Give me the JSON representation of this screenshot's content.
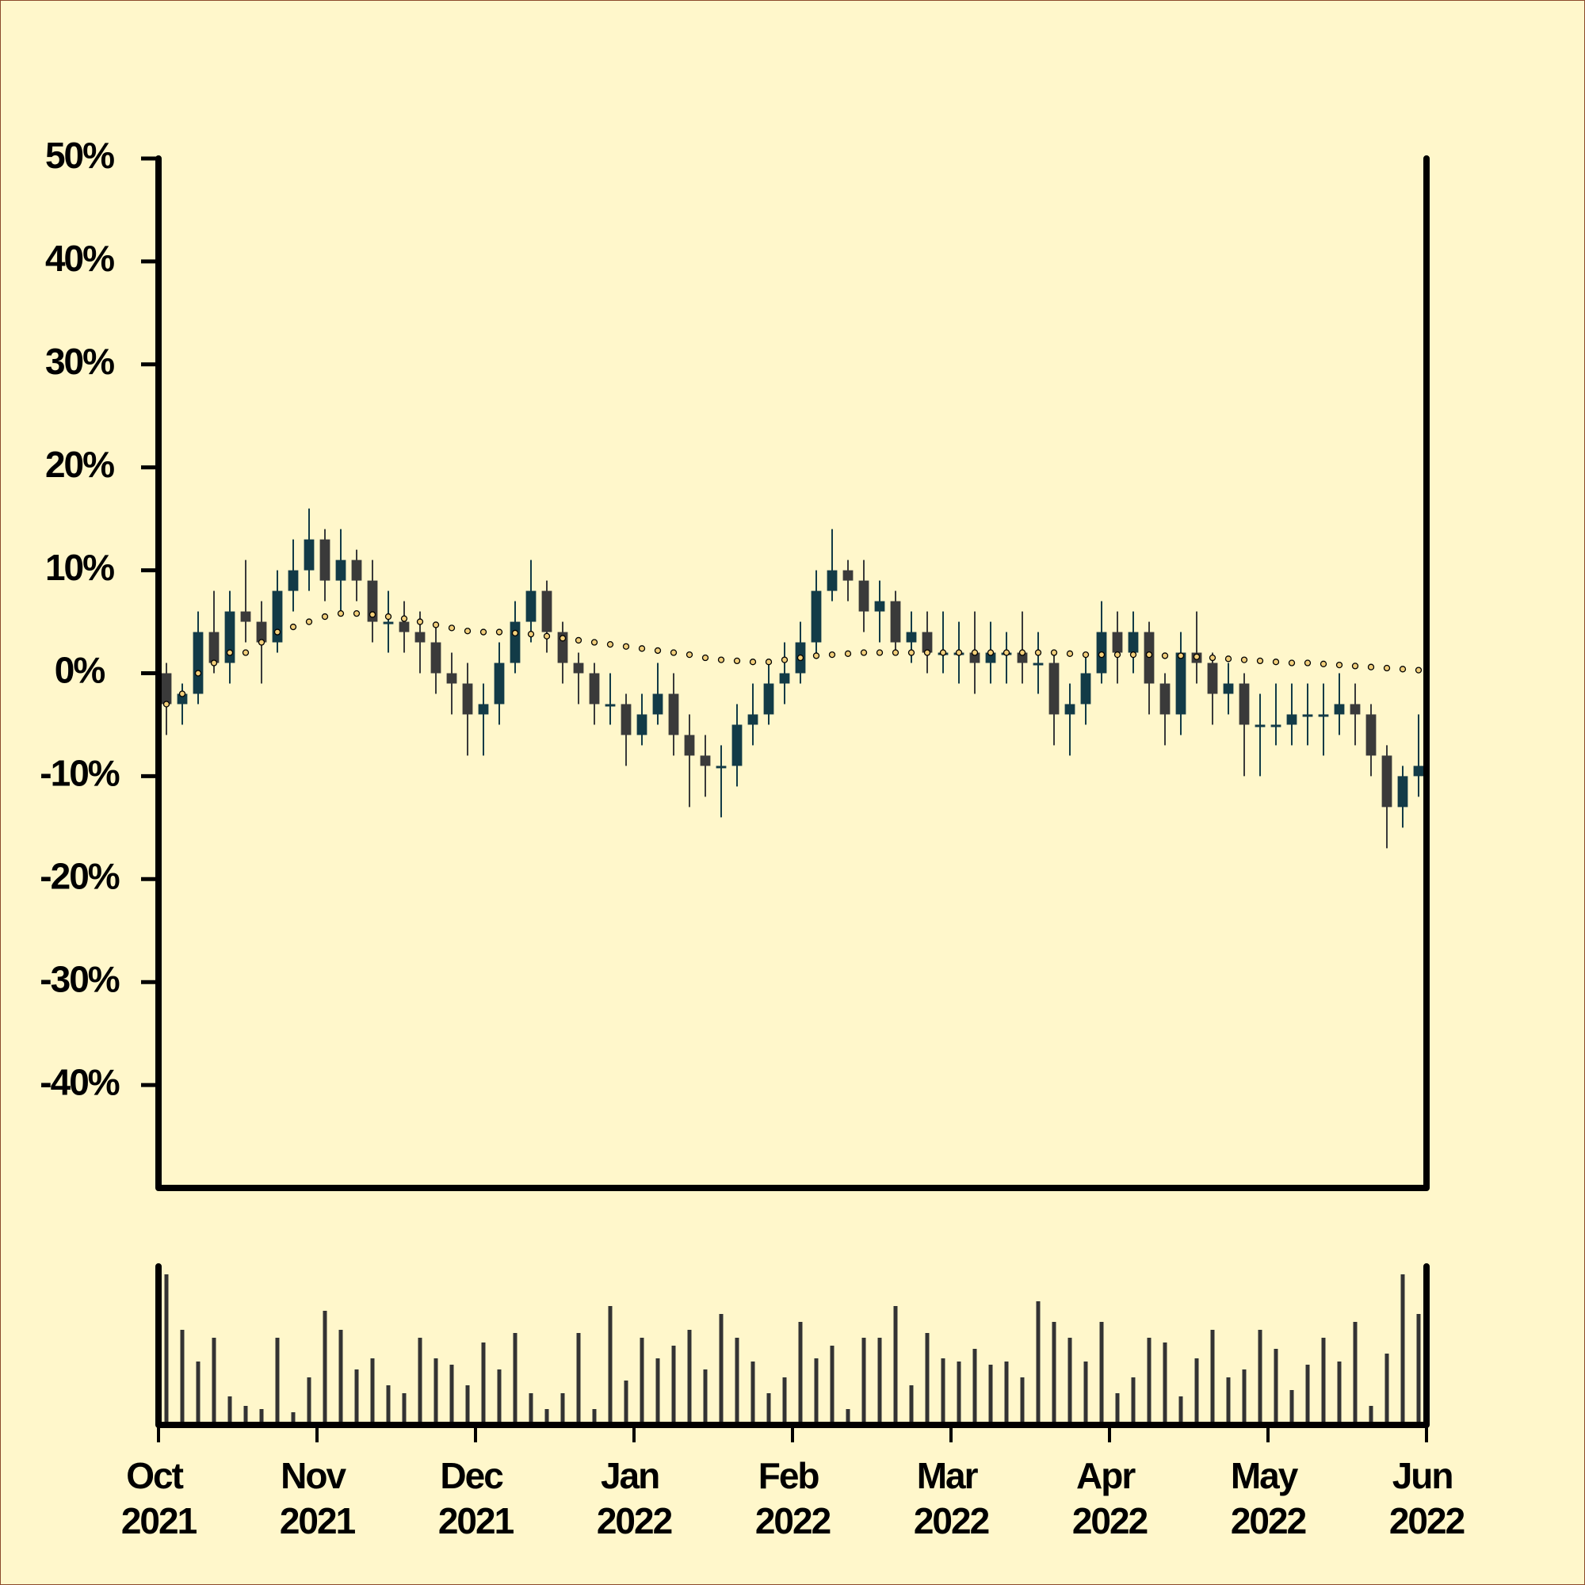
{
  "chart_data": {
    "type": "candlestick",
    "x": [
      0.05,
      0.15,
      0.25,
      0.35,
      0.45,
      0.55,
      0.65,
      0.75,
      0.85,
      0.95,
      1.05,
      1.15,
      1.25,
      1.35,
      1.45,
      1.55,
      1.65,
      1.75,
      1.85,
      1.95,
      2.05,
      2.15,
      2.25,
      2.35,
      2.45,
      2.55,
      2.65,
      2.75,
      2.85,
      2.95,
      3.05,
      3.15,
      3.25,
      3.35,
      3.45,
      3.55,
      3.65,
      3.75,
      3.85,
      3.95,
      4.05,
      4.15,
      4.25,
      4.35,
      4.45,
      4.55,
      4.65,
      4.75,
      4.85,
      4.95,
      5.05,
      5.15,
      5.25,
      5.35,
      5.45,
      5.55,
      5.65,
      5.75,
      5.85,
      5.95,
      6.05,
      6.15,
      6.25,
      6.35,
      6.45,
      6.55,
      6.65,
      6.75,
      6.85,
      6.95,
      7.05,
      7.15,
      7.25,
      7.35,
      7.45,
      7.55,
      7.65,
      7.75,
      7.85,
      7.95
    ],
    "open": [
      0,
      -3,
      -2,
      4,
      1,
      6,
      5,
      3,
      8,
      10,
      13,
      9,
      11,
      9,
      5,
      5,
      4,
      3,
      0,
      -1,
      -4,
      -3,
      1,
      5,
      8,
      4,
      1,
      0,
      -3,
      -3,
      -6,
      -4,
      -2,
      -6,
      -8,
      -9,
      -9,
      -5,
      -4,
      -1,
      0,
      3,
      8,
      10,
      9,
      6,
      7,
      3,
      4,
      2,
      2,
      2,
      1,
      2,
      2,
      1,
      1,
      -4,
      -3,
      0,
      4,
      2,
      4,
      -1,
      -4,
      2,
      1,
      -2,
      -1,
      -5,
      -5,
      -5,
      -4,
      -4,
      -4,
      -3,
      -4,
      -8,
      -13,
      -10
    ],
    "high": [
      1,
      -1,
      6,
      8,
      8,
      11,
      7,
      10,
      13,
      16,
      14,
      14,
      12,
      11,
      8,
      7,
      6,
      5,
      2,
      1,
      -1,
      3,
      7,
      11,
      9,
      5,
      2,
      1,
      0,
      -2,
      -2,
      1,
      0,
      -4,
      -6,
      -7,
      -3,
      -1,
      1,
      3,
      5,
      10,
      14,
      11,
      11,
      9,
      8,
      6,
      6,
      6,
      5,
      6,
      5,
      4,
      6,
      4,
      2,
      -1,
      2,
      7,
      6,
      6,
      5,
      0,
      4,
      6,
      2,
      1,
      0,
      -2,
      -1,
      -1,
      -1,
      -1,
      0,
      -1,
      -3,
      -7,
      -9,
      -4
    ],
    "low": [
      -6,
      -5,
      -3,
      0,
      -1,
      3,
      -1,
      2,
      6,
      8,
      7,
      6,
      7,
      3,
      2,
      2,
      0,
      -2,
      -4,
      -8,
      -8,
      -5,
      0,
      3,
      2,
      -1,
      -3,
      -5,
      -5,
      -9,
      -7,
      -5,
      -8,
      -13,
      -12,
      -14,
      -11,
      -7,
      -5,
      -3,
      -1,
      2,
      7,
      7,
      4,
      3,
      2,
      1,
      0,
      0,
      -1,
      -2,
      -1,
      -1,
      -1,
      -2,
      -7,
      -8,
      -5,
      -1,
      -1,
      0,
      -4,
      -7,
      -6,
      -1,
      -5,
      -4,
      -10,
      -10,
      -7,
      -7,
      -7,
      -8,
      -6,
      -7,
      -10,
      -17,
      -15,
      -12
    ],
    "close": [
      -3,
      -2,
      4,
      1,
      6,
      5,
      3,
      8,
      10,
      13,
      9,
      11,
      9,
      5,
      5,
      4,
      3,
      0,
      -1,
      -4,
      -3,
      1,
      5,
      8,
      4,
      1,
      0,
      -3,
      -3,
      -6,
      -4,
      -2,
      -6,
      -8,
      -9,
      -9,
      -5,
      -4,
      -1,
      0,
      3,
      8,
      10,
      9,
      6,
      7,
      3,
      4,
      2,
      2,
      2,
      1,
      2,
      2,
      1,
      1,
      -4,
      -3,
      0,
      4,
      2,
      4,
      -1,
      -4,
      2,
      1,
      -2,
      -1,
      -5,
      -5,
      -5,
      -4,
      -4,
      -4,
      -3,
      -4,
      -8,
      -13,
      -10,
      -9
    ],
    "volume": [
      95,
      60,
      40,
      55,
      18,
      12,
      10,
      55,
      8,
      30,
      72,
      60,
      35,
      42,
      25,
      20,
      55,
      42,
      38,
      25,
      52,
      35,
      58,
      20,
      10,
      20,
      58,
      10,
      75,
      28,
      55,
      42,
      50,
      60,
      35,
      70,
      55,
      40,
      20,
      30,
      65,
      42,
      50,
      10,
      55,
      55,
      75,
      25,
      58,
      42,
      40,
      48,
      38,
      40,
      30,
      78,
      65,
      55,
      40,
      65,
      20,
      30,
      55,
      52,
      18,
      42,
      60,
      30,
      35,
      60,
      48,
      22,
      38,
      55,
      40,
      65,
      12,
      45,
      95,
      70
    ],
    "moving_average": {
      "color": "#f2cf7a",
      "values": [
        -3,
        -2,
        0,
        1,
        2,
        2,
        3,
        4,
        4.5,
        5,
        5.5,
        5.8,
        5.8,
        5.7,
        5.5,
        5.3,
        5,
        4.7,
        4.4,
        4.1,
        4,
        4,
        3.9,
        3.8,
        3.6,
        3.4,
        3.2,
        3,
        2.8,
        2.6,
        2.4,
        2.2,
        2,
        1.8,
        1.5,
        1.3,
        1.2,
        1.1,
        1.1,
        1.3,
        1.5,
        1.7,
        1.8,
        1.9,
        2,
        2,
        2,
        2,
        2,
        2,
        2,
        2,
        2,
        2,
        2,
        2,
        2,
        1.9,
        1.8,
        1.8,
        1.8,
        1.8,
        1.8,
        1.7,
        1.7,
        1.6,
        1.5,
        1.4,
        1.3,
        1.2,
        1.1,
        1,
        1,
        0.9,
        0.8,
        0.7,
        0.6,
        0.5,
        0.4,
        0.3
      ]
    },
    "up_color": "#123b47",
    "down_color": "#3a3a3a",
    "volume_color": "#333333",
    "xlim": [
      0,
      8
    ],
    "xticks": [
      {
        "value": 0,
        "label": "Oct 2021"
      },
      {
        "value": 1,
        "label": "Nov 2021"
      },
      {
        "value": 2,
        "label": "Dec 2021"
      },
      {
        "value": 3,
        "label": "Jan 2022"
      },
      {
        "value": 4,
        "label": "Feb 2022"
      },
      {
        "value": 5,
        "label": "Mar 2022"
      },
      {
        "value": 6,
        "label": "Apr 2022"
      },
      {
        "value": 7,
        "label": "May 2022"
      },
      {
        "value": 8,
        "label": "Jun 2022"
      }
    ],
    "ylim": [
      -50,
      50
    ],
    "yticks": [
      {
        "value": 50,
        "label": "50%"
      },
      {
        "value": 40,
        "label": "40%"
      },
      {
        "value": 30,
        "label": "30%"
      },
      {
        "value": 20,
        "label": "20%"
      },
      {
        "value": 10,
        "label": "10%"
      },
      {
        "value": 0,
        "label": "0%"
      },
      {
        "value": -10,
        "label": "-10%"
      },
      {
        "value": -20,
        "label": "-20%"
      },
      {
        "value": -30,
        "label": "-30%"
      },
      {
        "value": -40,
        "label": "-40%"
      }
    ],
    "volume_ylim": [
      0,
      100
    ]
  }
}
